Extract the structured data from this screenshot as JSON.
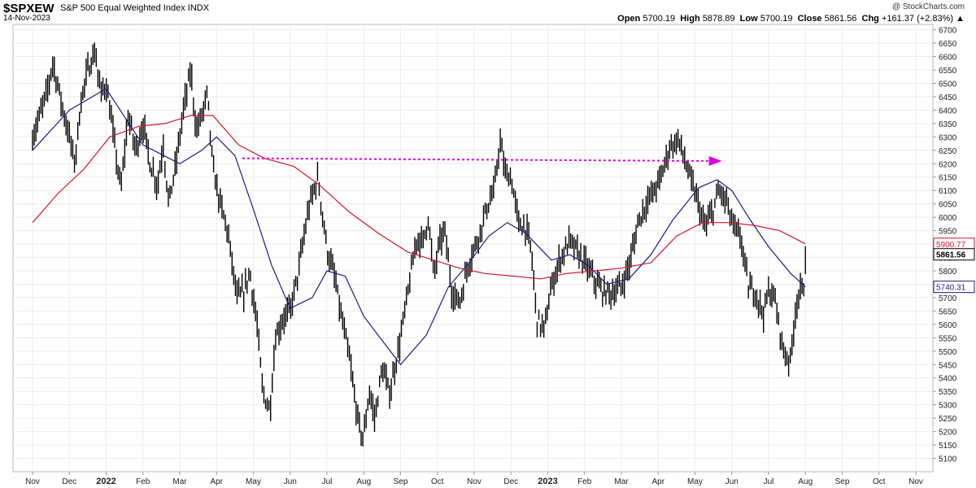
{
  "header": {
    "symbol": "$SPXEW",
    "name": "S&P 500 Equal Weighted Index",
    "exchange": "INDX",
    "date": "14-Nov-2023",
    "brand": "@ StockCharts.com",
    "open_label": "Open",
    "open": "5700.19",
    "high_label": "High",
    "high": "5878.89",
    "low_label": "Low",
    "low": "5700.19",
    "close_label": "Close",
    "close": "5861.56",
    "chg_label": "Chg",
    "chg": "+161.37 (+2.83%)",
    "chg_arrow": "▲"
  },
  "chart_data": {
    "type": "line",
    "title": "$SPXEW S&P 500 Equal Weighted Index INDX",
    "ylim": [
      5050,
      6720
    ],
    "y_ticks": [
      5100,
      5150,
      5200,
      5250,
      5300,
      5350,
      5400,
      5450,
      5500,
      5550,
      5600,
      5650,
      5700,
      5750,
      5800,
      5850,
      5900,
      5950,
      6000,
      6050,
      6100,
      6150,
      6200,
      6250,
      6300,
      6350,
      6400,
      6450,
      6500,
      6550,
      6600,
      6650,
      6700
    ],
    "x_tick_labels": [
      "Nov",
      "Dec",
      "2022",
      "Feb",
      "Mar",
      "Apr",
      "May",
      "Jun",
      "Jul",
      "Aug",
      "Sep",
      "Oct",
      "Nov",
      "Dec",
      "2023",
      "Feb",
      "Mar",
      "Apr",
      "May",
      "Jun",
      "Jul",
      "Aug",
      "Sep",
      "Oct",
      "Nov"
    ],
    "x_bold": [
      "2022",
      "2023"
    ],
    "grid": true,
    "price_keypoints": [
      [
        0,
        6300
      ],
      [
        0.2,
        6380
      ],
      [
        0.4,
        6470
      ],
      [
        0.55,
        6580
      ],
      [
        0.75,
        6450
      ],
      [
        1.0,
        6300
      ],
      [
        1.15,
        6200
      ],
      [
        1.3,
        6420
      ],
      [
        1.5,
        6550
      ],
      [
        1.7,
        6620
      ],
      [
        1.85,
        6460
      ],
      [
        2.0,
        6500
      ],
      [
        2.2,
        6300
      ],
      [
        2.4,
        6100
      ],
      [
        2.6,
        6380
      ],
      [
        2.8,
        6250
      ],
      [
        3.0,
        6350
      ],
      [
        3.2,
        6200
      ],
      [
        3.4,
        6120
      ],
      [
        3.55,
        6280
      ],
      [
        3.7,
        6050
      ],
      [
        3.9,
        6200
      ],
      [
        4.1,
        6400
      ],
      [
        4.3,
        6550
      ],
      [
        4.45,
        6320
      ],
      [
        4.6,
        6380
      ],
      [
        4.75,
        6460
      ],
      [
        4.9,
        6180
      ],
      [
        5.1,
        6050
      ],
      [
        5.3,
        5950
      ],
      [
        5.55,
        5700
      ],
      [
        5.75,
        5720
      ],
      [
        5.9,
        5800
      ],
      [
        6.1,
        5600
      ],
      [
        6.25,
        5350
      ],
      [
        6.45,
        5280
      ],
      [
        6.6,
        5550
      ],
      [
        6.8,
        5620
      ],
      [
        7.0,
        5650
      ],
      [
        7.2,
        5780
      ],
      [
        7.5,
        6030
      ],
      [
        7.75,
        6150
      ],
      [
        8.0,
        5880
      ],
      [
        8.2,
        5780
      ],
      [
        8.4,
        5620
      ],
      [
        8.6,
        5480
      ],
      [
        8.8,
        5280
      ],
      [
        8.9,
        5200
      ],
      [
        9.0,
        5180
      ],
      [
        9.15,
        5350
      ],
      [
        9.3,
        5250
      ],
      [
        9.5,
        5440
      ],
      [
        9.7,
        5340
      ],
      [
        10.0,
        5550
      ],
      [
        10.2,
        5720
      ],
      [
        10.45,
        5930
      ],
      [
        10.6,
        5900
      ],
      [
        10.75,
        6000
      ],
      [
        10.9,
        5780
      ],
      [
        11.05,
        5900
      ],
      [
        11.2,
        5950
      ],
      [
        11.4,
        5720
      ],
      [
        11.6,
        5680
      ],
      [
        11.85,
        5830
      ],
      [
        12.1,
        5920
      ],
      [
        12.35,
        6040
      ],
      [
        12.55,
        6100
      ],
      [
        12.7,
        6290
      ],
      [
        12.85,
        6160
      ],
      [
        13.0,
        6150
      ],
      [
        13.2,
        5980
      ],
      [
        13.4,
        5960
      ],
      [
        13.55,
        5880
      ],
      [
        13.7,
        5620
      ],
      [
        13.9,
        5580
      ],
      [
        14.1,
        5740
      ],
      [
        14.35,
        5850
      ],
      [
        14.6,
        5910
      ],
      [
        14.8,
        5870
      ],
      [
        15.05,
        5820
      ],
      [
        15.25,
        5770
      ],
      [
        15.5,
        5720
      ],
      [
        15.75,
        5720
      ],
      [
        16.0,
        5740
      ],
      [
        16.25,
        5840
      ],
      [
        16.45,
        5980
      ],
      [
        16.7,
        6060
      ],
      [
        16.9,
        6100
      ],
      [
        17.1,
        6160
      ],
      [
        17.3,
        6260
      ],
      [
        17.55,
        6290
      ],
      [
        17.75,
        6200
      ],
      [
        17.95,
        6110
      ],
      [
        18.1,
        6050
      ],
      [
        18.25,
        5960
      ],
      [
        18.45,
        6010
      ],
      [
        18.65,
        6100
      ],
      [
        18.85,
        6060
      ],
      [
        19.05,
        5960
      ],
      [
        19.25,
        5920
      ],
      [
        19.45,
        5740
      ],
      [
        19.65,
        5720
      ],
      [
        19.85,
        5640
      ],
      [
        20.0,
        5720
      ],
      [
        20.15,
        5710
      ],
      [
        20.3,
        5580
      ],
      [
        20.45,
        5480
      ],
      [
        20.6,
        5470
      ],
      [
        20.75,
        5680
      ],
      [
        20.85,
        5720
      ],
      [
        20.95,
        5730
      ],
      [
        21.0,
        5861.56
      ]
    ],
    "series": [
      {
        "name": "",
        "kind": "price-bars",
        "color": "#000000"
      },
      {
        "name": "",
        "kind": "sma50",
        "color": "#1c1c8c",
        "values": [
          [
            0,
            6250
          ],
          [
            1.0,
            6400
          ],
          [
            2.0,
            6480
          ],
          [
            3.0,
            6270
          ],
          [
            4.0,
            6200
          ],
          [
            4.6,
            6250
          ],
          [
            5.0,
            6300
          ],
          [
            5.5,
            6230
          ],
          [
            6.0,
            6030
          ],
          [
            6.5,
            5820
          ],
          [
            7.0,
            5660
          ],
          [
            7.6,
            5700
          ],
          [
            8.0,
            5800
          ],
          [
            8.5,
            5780
          ],
          [
            9.0,
            5630
          ],
          [
            9.5,
            5540
          ],
          [
            10.0,
            5450
          ],
          [
            10.7,
            5560
          ],
          [
            11.3,
            5740
          ],
          [
            11.8,
            5820
          ],
          [
            12.4,
            5930
          ],
          [
            12.9,
            5980
          ],
          [
            13.4,
            5940
          ],
          [
            14.1,
            5840
          ],
          [
            14.6,
            5860
          ],
          [
            15.1,
            5820
          ],
          [
            15.6,
            5750
          ],
          [
            16.2,
            5770
          ],
          [
            16.8,
            5860
          ],
          [
            17.4,
            5990
          ],
          [
            18.1,
            6110
          ],
          [
            18.6,
            6140
          ],
          [
            19.0,
            6100
          ],
          [
            19.5,
            5990
          ],
          [
            20.0,
            5890
          ],
          [
            20.6,
            5790
          ],
          [
            21.0,
            5740.31
          ]
        ]
      },
      {
        "name": "",
        "kind": "sma200",
        "color": "#cc1a2a",
        "values": [
          [
            0,
            5980
          ],
          [
            0.7,
            6090
          ],
          [
            1.4,
            6180
          ],
          [
            2.1,
            6300
          ],
          [
            2.9,
            6340
          ],
          [
            3.6,
            6350
          ],
          [
            4.3,
            6380
          ],
          [
            4.9,
            6380
          ],
          [
            5.6,
            6270
          ],
          [
            6.3,
            6220
          ],
          [
            7.1,
            6190
          ],
          [
            7.8,
            6120
          ],
          [
            8.6,
            6020
          ],
          [
            9.4,
            5940
          ],
          [
            10.2,
            5870
          ],
          [
            10.9,
            5840
          ],
          [
            11.6,
            5810
          ],
          [
            12.3,
            5790
          ],
          [
            13.1,
            5780
          ],
          [
            13.8,
            5770
          ],
          [
            14.5,
            5790
          ],
          [
            15.3,
            5800
          ],
          [
            16.0,
            5810
          ],
          [
            16.8,
            5830
          ],
          [
            17.5,
            5930
          ],
          [
            18.2,
            5980
          ],
          [
            18.9,
            5980
          ],
          [
            19.6,
            5970
          ],
          [
            20.3,
            5950
          ],
          [
            21.0,
            5900.77
          ]
        ]
      }
    ],
    "annotation_arrow": {
      "x_start": 5.7,
      "x_end": 18.6,
      "y_start": 6220,
      "y_end": 6210,
      "color": "#e000e0"
    },
    "last_values": [
      {
        "value": 5900.77,
        "label": "5900.77",
        "color": "#cc1a2a"
      },
      {
        "value": 5861.56,
        "label": "5861.56",
        "color": "#000000",
        "bold": true
      },
      {
        "value": 5740.31,
        "label": "5740.31",
        "color": "#1c1c8c"
      }
    ]
  }
}
